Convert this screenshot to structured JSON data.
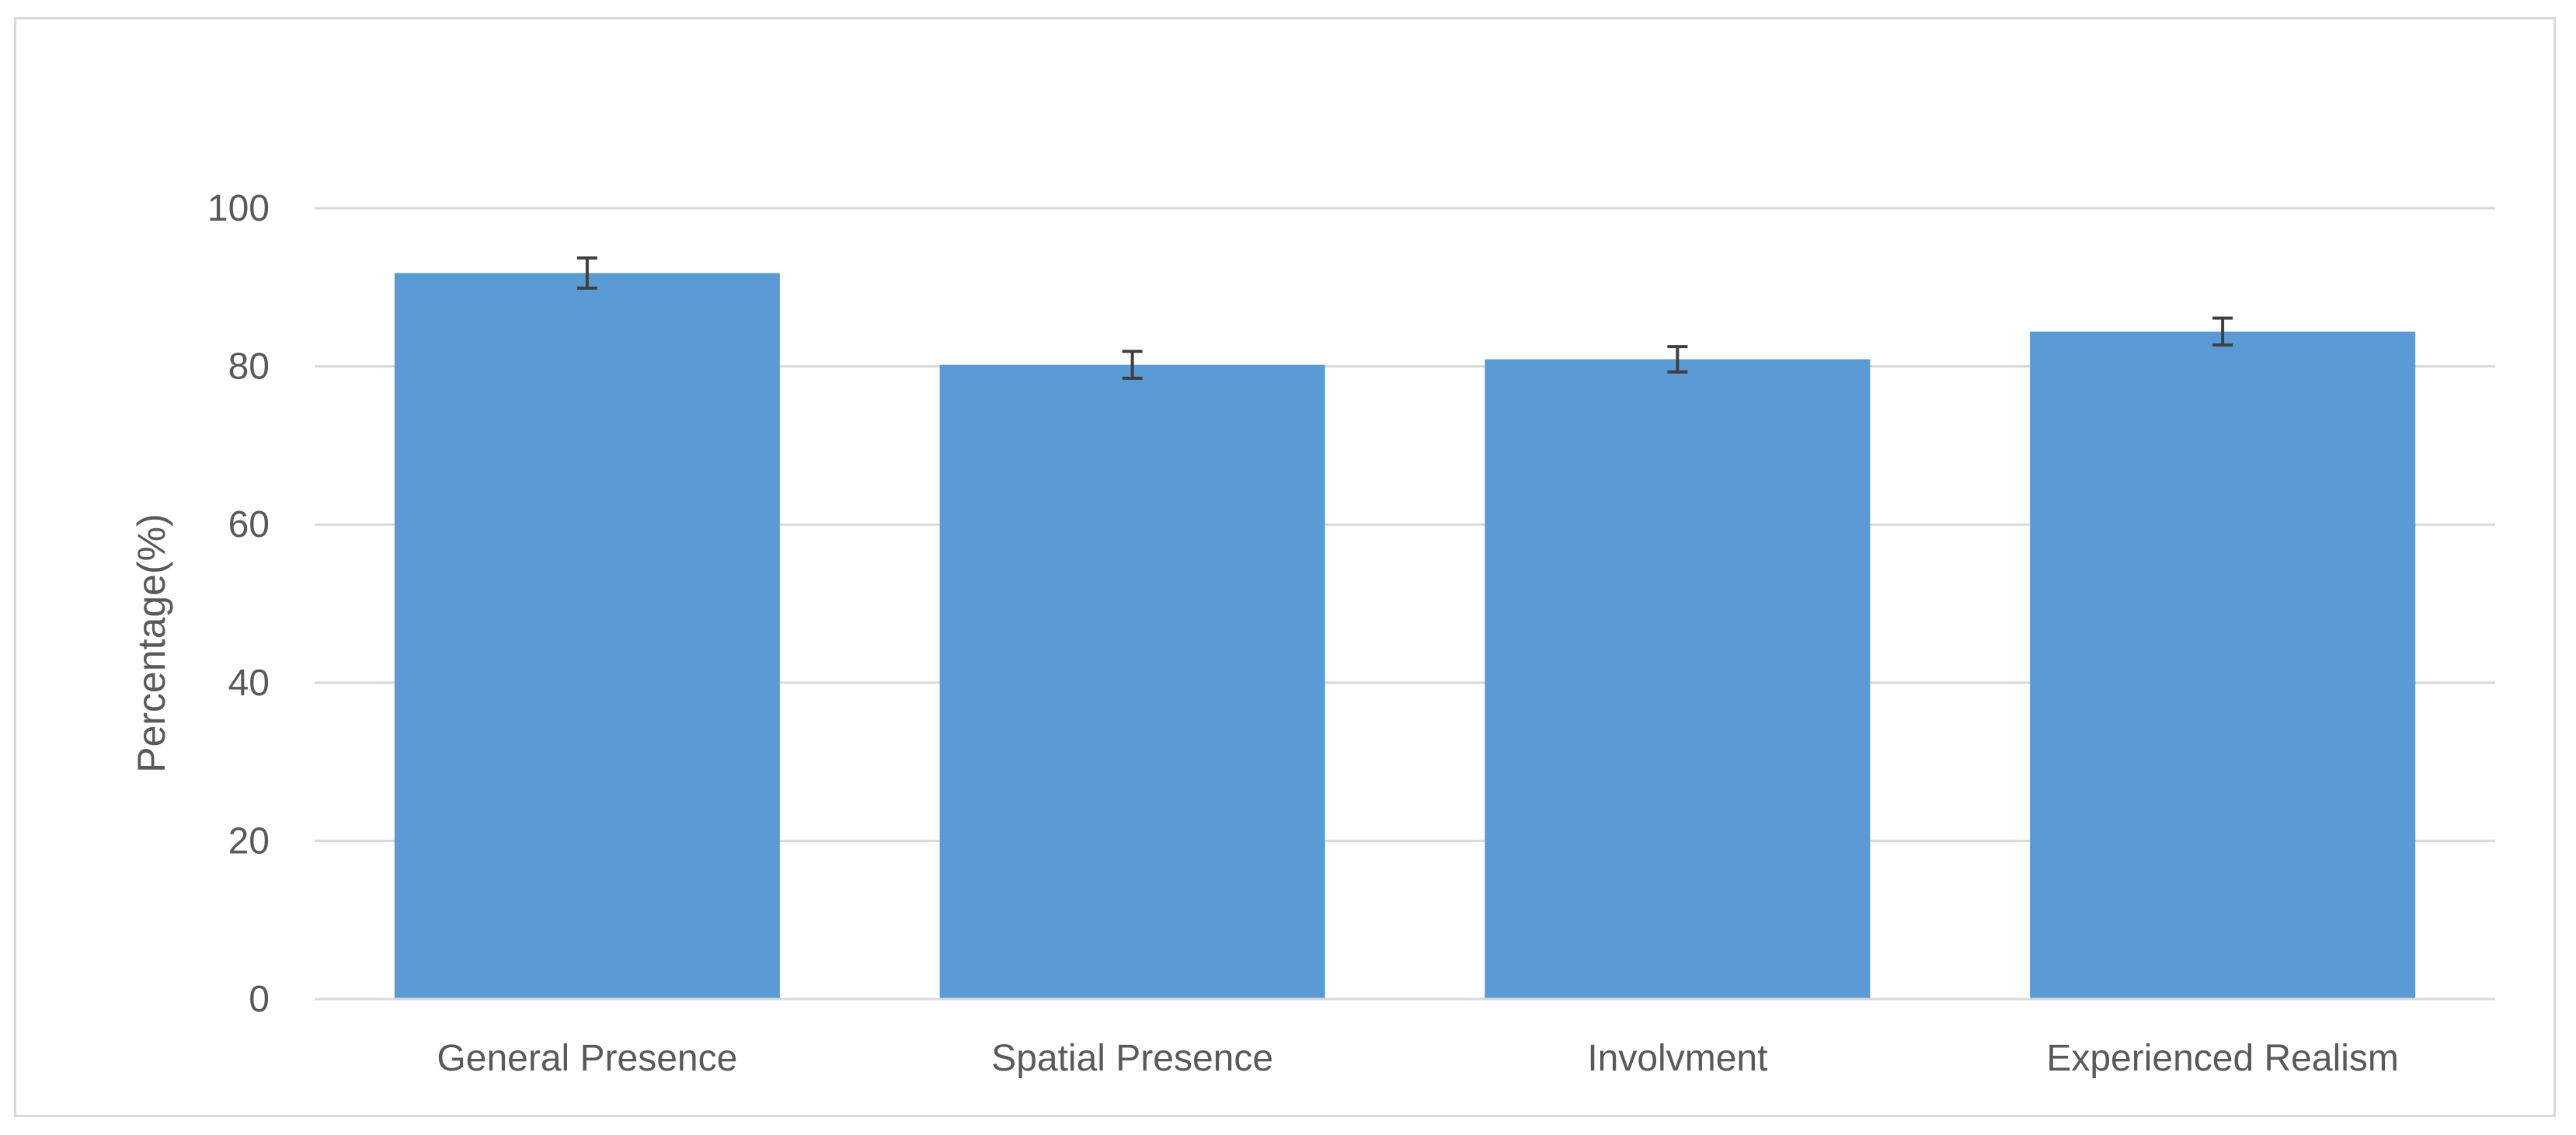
{
  "chart_data": {
    "type": "bar",
    "title": "",
    "xlabel": "",
    "ylabel": "Percentage(%)",
    "categories": [
      "General Presence",
      "Spatial Presence",
      "Involvment",
      "Experienced Realism"
    ],
    "values": [
      91.8,
      80.2,
      80.9,
      84.4
    ],
    "error": [
      1.9,
      1.7,
      1.6,
      1.7
    ],
    "ylim": [
      0,
      100
    ],
    "yticks": [
      "0",
      "20",
      "40",
      "60",
      "80",
      "100"
    ],
    "grid": true,
    "legend": "none",
    "colors": {
      "bar": "#5b9bd5",
      "error_bar": "#404040",
      "grid": "#d9d9d9",
      "text": "#595959"
    }
  }
}
